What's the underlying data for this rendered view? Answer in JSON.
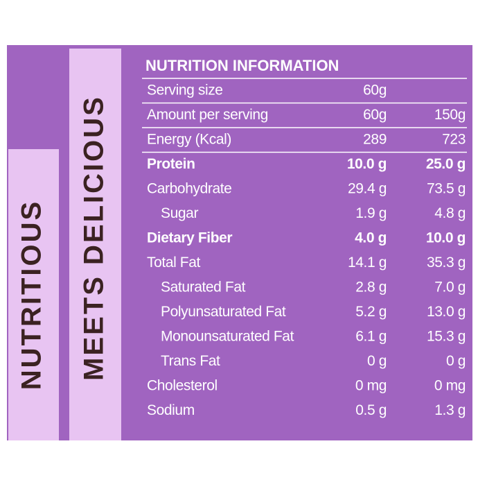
{
  "side_labels": [
    "NUTRITIOUS",
    "MEETS DELICIOUS"
  ],
  "header": {
    "title": "NUTRITION INFORMATION"
  },
  "table": {
    "rows": [
      {
        "label": "Serving size",
        "values": [
          "60g"
        ]
      },
      {
        "label": "Amount per serving",
        "values": [
          "60g",
          "150g"
        ]
      },
      {
        "label": "Energy (Kcal)",
        "values": [
          "289",
          "723"
        ]
      },
      {
        "label": "Protein",
        "values": [
          "10.0 g",
          "25.0 g"
        ],
        "bold": true
      },
      {
        "label": "Carbohydrate",
        "values": [
          "29.4 g",
          "73.5 g"
        ]
      },
      {
        "label": "Sugar",
        "values": [
          "1.9 g",
          "4.8 g"
        ],
        "indent": true
      },
      {
        "label": "Dietary Fiber",
        "values": [
          "4.0 g",
          "10.0 g"
        ],
        "bold": true
      },
      {
        "label": "Total Fat",
        "values": [
          "14.1 g",
          "35.3 g"
        ]
      },
      {
        "label": "Saturated Fat",
        "values": [
          "2.8 g",
          "7.0 g"
        ],
        "indent": true
      },
      {
        "label": "Polyunsaturated Fat",
        "values": [
          "5.2 g",
          "13.0 g"
        ],
        "indent": true
      },
      {
        "label": "Monounsaturated Fat",
        "values": [
          "6.1 g",
          "15.3 g"
        ],
        "indent": true
      },
      {
        "label": "Trans Fat",
        "values": [
          "0 g",
          "0 g"
        ],
        "indent": true
      },
      {
        "label": "Cholesterol",
        "values": [
          "0 mg",
          "0 mg"
        ]
      },
      {
        "label": "Sodium",
        "values": [
          "0.5 g",
          "1.3 g"
        ]
      }
    ]
  }
}
